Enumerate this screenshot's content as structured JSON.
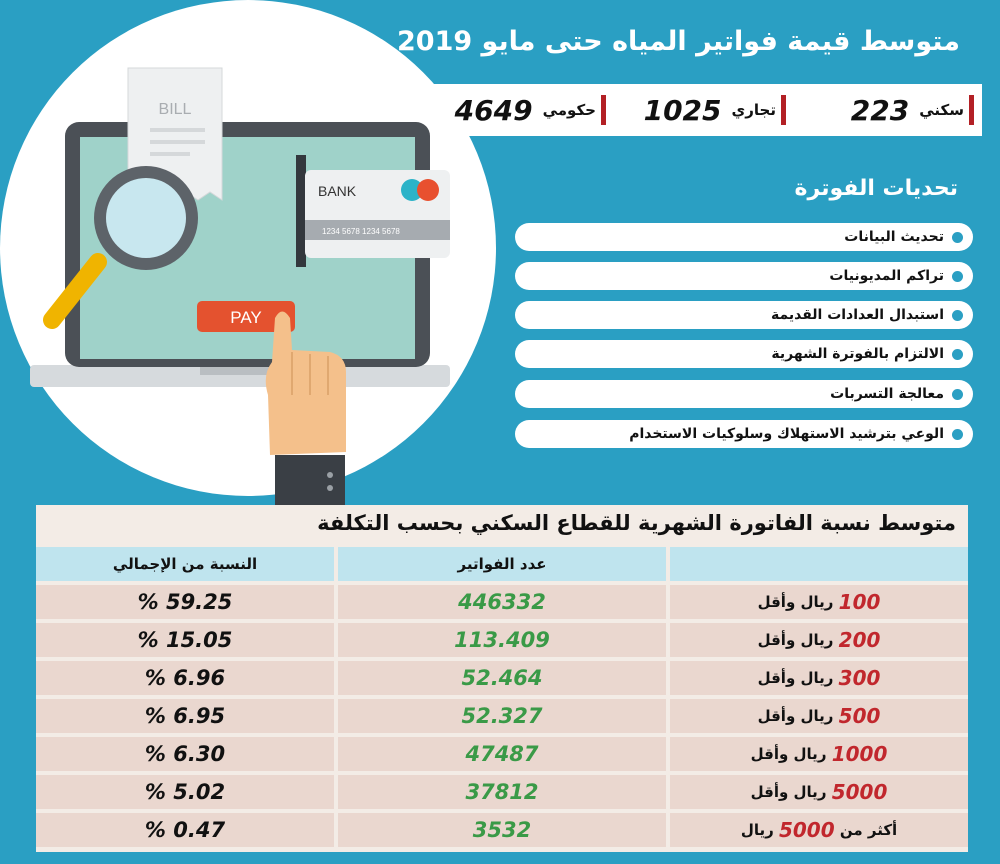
{
  "title": "متوسط قيمة فواتير المياه حتى مايو 2019",
  "stats": [
    {
      "label": "سكني",
      "value": "223"
    },
    {
      "label": "تجاري",
      "value": "1025"
    },
    {
      "label": "حكومي",
      "value": "4649"
    }
  ],
  "illustration": {
    "bill_label": "BILL",
    "bank_label": "BANK",
    "card_number": "1234 5678 1234 5678",
    "pay_label": "PAY"
  },
  "challenges": {
    "title": "تحديات الفوترة",
    "items": [
      "تحديث البيانات",
      "تراكم المديونيات",
      "استبدال العدادات القديمة",
      "الالتزام بالفوترة الشهرية",
      "معالجة التسربات",
      "الوعي بترشيد الاستهلاك وسلوكيات الاستخدام"
    ]
  },
  "table": {
    "title": "متوسط نسبة الفاتورة الشهرية للقطاع السكني بحسب التكلفة",
    "headers": {
      "range": "",
      "count": "عدد الفواتير",
      "percent": "النسبة من الإجمالي"
    },
    "rows": [
      {
        "prefix": "",
        "num": "100",
        "suffix": "ريال وأقل",
        "count": "446332",
        "percent": "% 59.25"
      },
      {
        "prefix": "",
        "num": "200",
        "suffix": "ريال وأقل",
        "count": "113.409",
        "percent": "% 15.05"
      },
      {
        "prefix": "",
        "num": "300",
        "suffix": "ريال وأقل",
        "count": "52.464",
        "percent": "% 6.96"
      },
      {
        "prefix": "",
        "num": "500",
        "suffix": "ريال وأقل",
        "count": "52.327",
        "percent": "% 6.95"
      },
      {
        "prefix": "",
        "num": "1000",
        "suffix": "ريال وأقل",
        "count": "47487",
        "percent": "% 6.30"
      },
      {
        "prefix": "",
        "num": "5000",
        "suffix": "ريال وأقل",
        "count": "37812",
        "percent": "% 5.02"
      },
      {
        "prefix": "أكثر من",
        "num": "5000",
        "suffix": "ريال",
        "count": "3532",
        "percent": "% 0.47"
      }
    ]
  },
  "colors": {
    "background": "#2a9fc3",
    "accent_red": "#b32025",
    "count_green": "#3a9a47",
    "table_row": "#ead7cf",
    "table_header": "#bfe4ee"
  }
}
